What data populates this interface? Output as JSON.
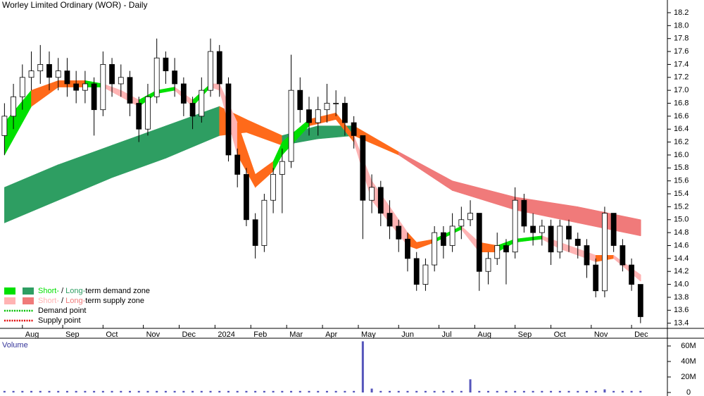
{
  "chart_data": {
    "type": "candlestick",
    "title": "Worley Limited Ordinary (WOR) - Daily",
    "xlim": [
      -0.5,
      74
    ],
    "xticks": [
      {
        "value": 2,
        "label": "Aug"
      },
      {
        "value": 6.5,
        "label": "Sep"
      },
      {
        "value": 11,
        "label": "Oct"
      },
      {
        "value": 15.5,
        "label": "Nov"
      },
      {
        "value": 19.5,
        "label": "Dec"
      },
      {
        "value": 23.5,
        "label": "2024"
      },
      {
        "value": 27.5,
        "label": "Feb"
      },
      {
        "value": 31.5,
        "label": "Mar"
      },
      {
        "value": 35.5,
        "label": "Apr"
      },
      {
        "value": 39.5,
        "label": "May"
      },
      {
        "value": 44,
        "label": "Jun"
      },
      {
        "value": 48.5,
        "label": "Jul"
      },
      {
        "value": 52.5,
        "label": "Aug"
      },
      {
        "value": 57,
        "label": "Sep"
      },
      {
        "value": 61,
        "label": "Oct"
      },
      {
        "value": 65.5,
        "label": "Nov"
      },
      {
        "value": 70,
        "label": "Dec"
      }
    ],
    "ylim": [
      13.32,
      18.396
    ],
    "yticks": [
      13.4,
      13.6,
      13.8,
      {
        "value": 14,
        "label": "14.0"
      },
      14.2,
      14.4,
      14.6,
      14.8,
      {
        "value": 15,
        "label": "15.0"
      },
      15.2,
      15.4,
      15.6,
      15.8,
      {
        "value": 16,
        "label": "16.0"
      },
      16.2,
      16.4,
      16.6,
      16.8,
      {
        "value": 17,
        "label": "17.0"
      },
      17.2,
      17.4,
      17.6,
      17.8,
      {
        "value": 18,
        "label": "18.0"
      },
      18.2
    ],
    "open": [
      16.3,
      16.6,
      16.9,
      17.2,
      17.3,
      17.4,
      17.2,
      17.3,
      17.1,
      17.0,
      17.1,
      16.7,
      17.4,
      17.1,
      17.2,
      16.8,
      16.4,
      16.9,
      17.5,
      17.3,
      17.1,
      16.8,
      16.6,
      17.0,
      17.6,
      17.1,
      16.0,
      15.7,
      15.0,
      14.6,
      15.3,
      15.7,
      15.9,
      17.0,
      16.7,
      16.5,
      16.7,
      16.8,
      16.8,
      16.5,
      16.3,
      15.3,
      15.5,
      15.1,
      14.9,
      14.7,
      14.4,
      14.0,
      14.3,
      14.8,
      14.6,
      14.9,
      15.0,
      15.1,
      14.2,
      14.4,
      14.6,
      14.5,
      15.3,
      14.9,
      14.8,
      14.9,
      14.5,
      14.9,
      14.7,
      14.6,
      14.3,
      13.9,
      15.1,
      14.6,
      14.3,
      14.0
    ],
    "high": [
      16.8,
      17.1,
      17.4,
      17.6,
      17.7,
      17.6,
      17.5,
      17.5,
      17.3,
      17.3,
      17.2,
      17.6,
      17.5,
      17.4,
      17.3,
      16.9,
      17.1,
      17.8,
      17.6,
      17.5,
      17.2,
      16.9,
      17.2,
      17.8,
      17.7,
      17.2,
      16.1,
      15.8,
      15.1,
      15.4,
      15.8,
      16.1,
      17.55,
      17.2,
      16.9,
      16.9,
      17.1,
      17.0,
      16.9,
      16.6,
      16.3,
      15.7,
      15.6,
      15.3,
      15.0,
      14.8,
      14.5,
      14.4,
      14.9,
      14.9,
      15.1,
      15.2,
      15.3,
      15.1,
      14.5,
      14.8,
      14.7,
      15.5,
      15.4,
      15.1,
      15.0,
      15.0,
      15.0,
      15.0,
      14.8,
      14.7,
      14.4,
      15.2,
      15.1,
      14.7,
      14.4,
      14.0
    ],
    "low": [
      16.0,
      16.4,
      16.7,
      17.0,
      17.1,
      17.0,
      17.0,
      16.9,
      16.8,
      16.8,
      16.3,
      16.6,
      16.9,
      16.9,
      16.6,
      16.2,
      16.3,
      16.8,
      17.1,
      16.9,
      16.6,
      16.4,
      16.5,
      16.9,
      16.9,
      15.9,
      15.5,
      14.9,
      14.4,
      14.5,
      15.1,
      15.1,
      15.8,
      16.5,
      16.3,
      16.3,
      16.5,
      16.6,
      16.3,
      16.1,
      14.7,
      15.1,
      14.9,
      14.7,
      14.5,
      14.2,
      13.9,
      13.9,
      14.2,
      14.4,
      14.5,
      14.7,
      14.9,
      13.9,
      14.0,
      14.3,
      14.0,
      14.4,
      14.8,
      14.6,
      14.6,
      14.3,
      14.4,
      14.5,
      14.4,
      14.1,
      13.8,
      13.8,
      14.5,
      14.2,
      13.9,
      13.4
    ],
    "close": [
      16.6,
      16.9,
      17.2,
      17.3,
      17.4,
      17.2,
      17.3,
      17.1,
      17.0,
      17.1,
      16.7,
      17.4,
      17.1,
      17.2,
      16.8,
      16.4,
      16.9,
      17.5,
      17.3,
      17.1,
      16.8,
      16.6,
      17.0,
      17.6,
      17.1,
      16.0,
      15.7,
      15.0,
      14.6,
      15.3,
      15.7,
      15.9,
      17.0,
      16.7,
      16.5,
      16.7,
      16.8,
      16.8,
      16.5,
      16.3,
      15.3,
      15.5,
      15.1,
      14.9,
      14.7,
      14.4,
      14.0,
      14.3,
      14.8,
      14.6,
      14.9,
      15.0,
      15.1,
      14.2,
      14.4,
      14.6,
      14.5,
      15.3,
      14.9,
      14.8,
      14.9,
      14.5,
      14.9,
      14.7,
      14.6,
      14.3,
      13.9,
      15.1,
      14.6,
      14.3,
      14.0,
      13.5
    ],
    "long_zone": {
      "x": [
        0,
        6,
        12,
        18,
        24,
        27,
        31,
        35,
        39,
        44,
        50,
        57,
        64,
        71
      ],
      "upper": [
        15.5,
        15.85,
        16.15,
        16.45,
        16.75,
        16.55,
        16.3,
        16.45,
        16.45,
        16.05,
        15.6,
        15.35,
        15.2,
        15.0
      ],
      "lower": [
        14.95,
        15.3,
        15.65,
        15.95,
        16.3,
        16.35,
        16.15,
        16.25,
        16.3,
        16.0,
        15.45,
        15.15,
        14.95,
        14.75
      ],
      "colors": [
        "#2e9e62",
        "#2e9e62",
        "#2e9e62",
        "#2e9e62",
        "#ff6a1a",
        "#ff6a1a",
        "#2e9e62",
        "#2e9e62",
        "#ff6a1a",
        "#f07a7a",
        "#f07a7a",
        "#f07a7a",
        "#f07a7a",
        "#f07a7a"
      ]
    },
    "short_zone": {
      "x": [
        0,
        3,
        6,
        9,
        11,
        13,
        15,
        17,
        19,
        21,
        23,
        24,
        26,
        28,
        30,
        31,
        34,
        37,
        39,
        41,
        45,
        46,
        48,
        51,
        53,
        55,
        57,
        60,
        62,
        66,
        68,
        71
      ],
      "upper": [
        16.5,
        17.0,
        17.15,
        17.15,
        17.1,
        17.0,
        16.85,
        17.0,
        17.05,
        16.85,
        17.1,
        17.1,
        16.5,
        15.7,
        15.9,
        16.2,
        16.55,
        16.65,
        16.3,
        15.6,
        14.8,
        14.65,
        14.7,
        14.9,
        14.65,
        14.6,
        14.7,
        14.75,
        14.65,
        14.45,
        14.45,
        14.15
      ],
      "lower": [
        16.0,
        16.75,
        17.05,
        17.05,
        17.05,
        16.9,
        16.75,
        16.95,
        17.0,
        16.75,
        17.05,
        17.0,
        16.0,
        15.5,
        15.75,
        16.0,
        16.45,
        16.55,
        16.2,
        15.3,
        14.6,
        14.55,
        14.65,
        14.85,
        14.5,
        14.5,
        14.65,
        14.7,
        14.55,
        14.35,
        14.4,
        14.05
      ],
      "colors": [
        "#00e000",
        "#ff6a1a",
        "#ff6a1a",
        "#00e000",
        "#ffb3b3",
        "#ffb3b3",
        "#00e000",
        "#00e000",
        "#ffb3b3",
        "#00e000",
        "#ffb3b3",
        "#ffb3b3",
        "#ff6a1a",
        "#ff6a1a",
        "#00e000",
        "#00e000",
        "#ff6a1a",
        "#ff6a1a",
        "#ffb3b3",
        "#ffb3b3",
        "#ff6a1a",
        "#ff6a1a",
        "#00e000",
        "#ffb3b3",
        "#ff6a1a",
        "#00e000",
        "#00e000",
        "#ffb3b3",
        "#ffb3b3",
        "#ff6a1a",
        "#ffb3b3",
        "#ffb3b3"
      ]
    },
    "legend": [
      {
        "swatches": [
          "#00e000",
          "#2e9e62"
        ],
        "parts": [
          {
            "text": "Short-",
            "color": "#00e000"
          },
          {
            "text": " / "
          },
          {
            "text": "Long-",
            "color": "#2e9e62"
          },
          {
            "text": "term demand zone"
          }
        ]
      },
      {
        "swatches": [
          "#ffb3b3",
          "#f07a7a"
        ],
        "parts": [
          {
            "text": "Short-",
            "color": "#ffb3b3"
          },
          {
            "text": " / "
          },
          {
            "text": "Long-",
            "color": "#f07a7a"
          },
          {
            "text": "term supply zone"
          }
        ]
      },
      {
        "line": "#00c000",
        "parts": [
          {
            "text": "Demand point"
          }
        ]
      },
      {
        "line": "#e00000",
        "parts": [
          {
            "text": "Supply point"
          }
        ]
      }
    ],
    "volume": {
      "label": "Volume",
      "color": "#5555bb",
      "ylim": [
        0,
        70
      ],
      "yticks": [
        0,
        {
          "value": 20,
          "label": "20M"
        },
        {
          "value": 40,
          "label": "40M"
        },
        {
          "value": 60,
          "label": "60M"
        }
      ],
      "values": [
        2,
        2,
        2,
        2,
        2,
        2,
        2,
        2,
        2,
        2,
        2,
        2,
        2,
        2,
        2,
        2,
        2,
        2,
        2,
        2,
        2,
        2,
        2,
        2,
        2,
        2,
        2,
        2,
        2,
        2,
        2,
        2,
        2,
        2,
        2,
        2,
        2,
        2,
        2,
        2,
        66,
        5,
        2,
        2,
        2,
        2,
        2,
        2,
        2,
        2,
        2,
        2,
        17,
        2,
        2,
        2,
        2,
        2,
        2,
        2,
        2,
        2,
        2,
        2,
        2,
        2,
        2,
        4,
        2,
        2,
        2,
        2
      ]
    }
  }
}
